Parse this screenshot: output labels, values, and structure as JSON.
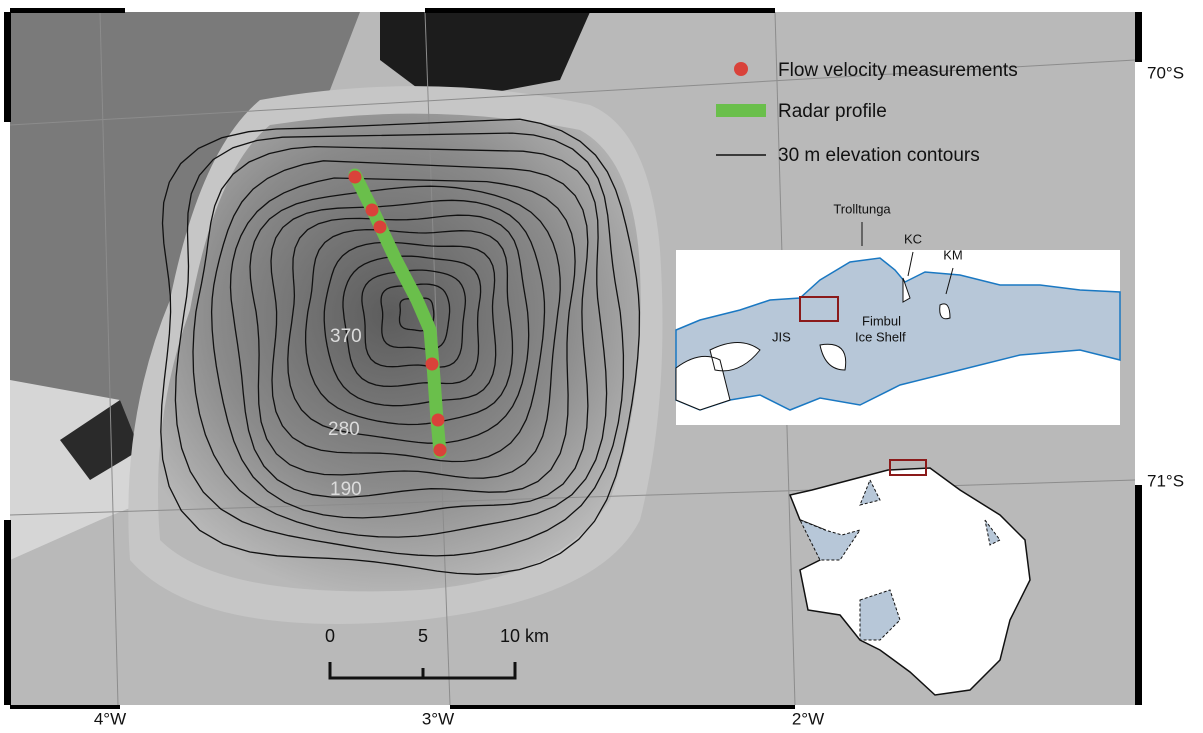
{
  "legend": [
    "Flow velocity measurements",
    "Radar profile",
    "30 m elevation contours"
  ],
  "contour_labels": [
    370,
    280,
    190
  ],
  "inset": {
    "trolltunga": "Trolltunga",
    "kc": "KC",
    "km": "KM",
    "jis": "JIS",
    "fimbul_ice_shelf": [
      "Fimbul",
      "Ice Shelf"
    ]
  },
  "scale_bar": [
    "0",
    "5",
    "10 km"
  ],
  "latitude_labels": [
    "70°S",
    "71°S"
  ],
  "longitude_labels": [
    "4°W",
    "3°W",
    "2°W"
  ]
}
